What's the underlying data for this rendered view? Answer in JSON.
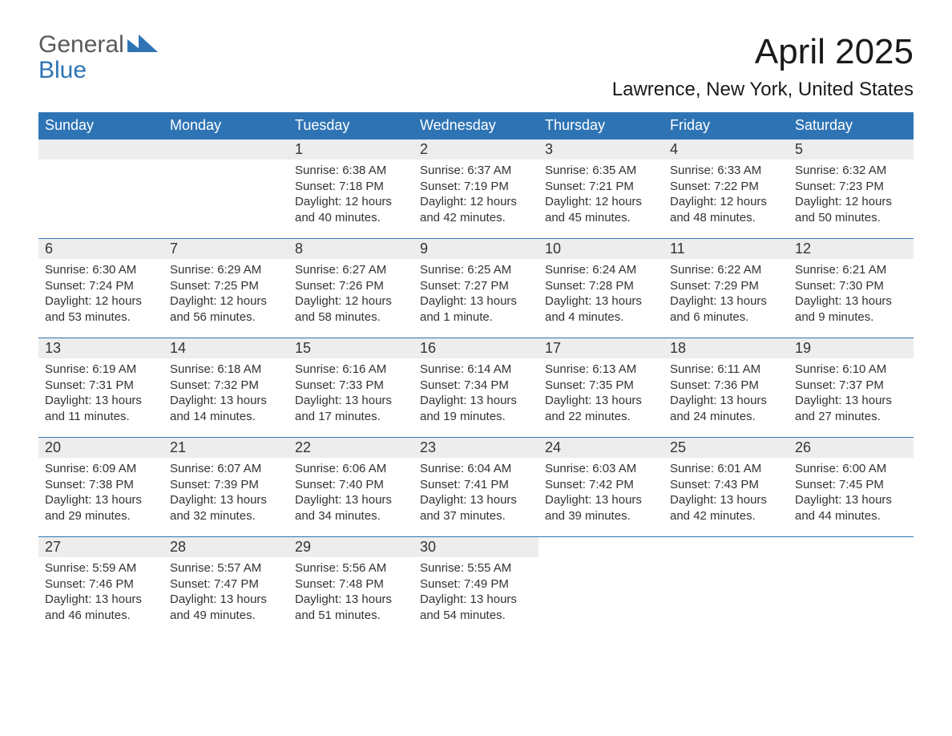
{
  "branding": {
    "logo_line1": "General",
    "logo_line2": "Blue"
  },
  "header": {
    "month_title": "April 2025",
    "location": "Lawrence, New York, United States"
  },
  "style": {
    "header_bg": "#2e74b5",
    "header_text": "#ffffff",
    "daynum_bg": "#ededed",
    "body_text": "#333333",
    "row_border": "#2e74b5",
    "page_bg": "#ffffff",
    "month_title_fontsize": 44,
    "location_fontsize": 24,
    "day_header_fontsize": 18,
    "daynum_fontsize": 18,
    "cell_fontsize": 15
  },
  "day_headers": [
    "Sunday",
    "Monday",
    "Tuesday",
    "Wednesday",
    "Thursday",
    "Friday",
    "Saturday"
  ],
  "weeks": [
    [
      {
        "blank": true
      },
      {
        "blank": true
      },
      {
        "day": "1",
        "sunrise": "Sunrise: 6:38 AM",
        "sunset": "Sunset: 7:18 PM",
        "daylight1": "Daylight: 12 hours",
        "daylight2": "and 40 minutes."
      },
      {
        "day": "2",
        "sunrise": "Sunrise: 6:37 AM",
        "sunset": "Sunset: 7:19 PM",
        "daylight1": "Daylight: 12 hours",
        "daylight2": "and 42 minutes."
      },
      {
        "day": "3",
        "sunrise": "Sunrise: 6:35 AM",
        "sunset": "Sunset: 7:21 PM",
        "daylight1": "Daylight: 12 hours",
        "daylight2": "and 45 minutes."
      },
      {
        "day": "4",
        "sunrise": "Sunrise: 6:33 AM",
        "sunset": "Sunset: 7:22 PM",
        "daylight1": "Daylight: 12 hours",
        "daylight2": "and 48 minutes."
      },
      {
        "day": "5",
        "sunrise": "Sunrise: 6:32 AM",
        "sunset": "Sunset: 7:23 PM",
        "daylight1": "Daylight: 12 hours",
        "daylight2": "and 50 minutes."
      }
    ],
    [
      {
        "day": "6",
        "sunrise": "Sunrise: 6:30 AM",
        "sunset": "Sunset: 7:24 PM",
        "daylight1": "Daylight: 12 hours",
        "daylight2": "and 53 minutes."
      },
      {
        "day": "7",
        "sunrise": "Sunrise: 6:29 AM",
        "sunset": "Sunset: 7:25 PM",
        "daylight1": "Daylight: 12 hours",
        "daylight2": "and 56 minutes."
      },
      {
        "day": "8",
        "sunrise": "Sunrise: 6:27 AM",
        "sunset": "Sunset: 7:26 PM",
        "daylight1": "Daylight: 12 hours",
        "daylight2": "and 58 minutes."
      },
      {
        "day": "9",
        "sunrise": "Sunrise: 6:25 AM",
        "sunset": "Sunset: 7:27 PM",
        "daylight1": "Daylight: 13 hours",
        "daylight2": "and 1 minute."
      },
      {
        "day": "10",
        "sunrise": "Sunrise: 6:24 AM",
        "sunset": "Sunset: 7:28 PM",
        "daylight1": "Daylight: 13 hours",
        "daylight2": "and 4 minutes."
      },
      {
        "day": "11",
        "sunrise": "Sunrise: 6:22 AM",
        "sunset": "Sunset: 7:29 PM",
        "daylight1": "Daylight: 13 hours",
        "daylight2": "and 6 minutes."
      },
      {
        "day": "12",
        "sunrise": "Sunrise: 6:21 AM",
        "sunset": "Sunset: 7:30 PM",
        "daylight1": "Daylight: 13 hours",
        "daylight2": "and 9 minutes."
      }
    ],
    [
      {
        "day": "13",
        "sunrise": "Sunrise: 6:19 AM",
        "sunset": "Sunset: 7:31 PM",
        "daylight1": "Daylight: 13 hours",
        "daylight2": "and 11 minutes."
      },
      {
        "day": "14",
        "sunrise": "Sunrise: 6:18 AM",
        "sunset": "Sunset: 7:32 PM",
        "daylight1": "Daylight: 13 hours",
        "daylight2": "and 14 minutes."
      },
      {
        "day": "15",
        "sunrise": "Sunrise: 6:16 AM",
        "sunset": "Sunset: 7:33 PM",
        "daylight1": "Daylight: 13 hours",
        "daylight2": "and 17 minutes."
      },
      {
        "day": "16",
        "sunrise": "Sunrise: 6:14 AM",
        "sunset": "Sunset: 7:34 PM",
        "daylight1": "Daylight: 13 hours",
        "daylight2": "and 19 minutes."
      },
      {
        "day": "17",
        "sunrise": "Sunrise: 6:13 AM",
        "sunset": "Sunset: 7:35 PM",
        "daylight1": "Daylight: 13 hours",
        "daylight2": "and 22 minutes."
      },
      {
        "day": "18",
        "sunrise": "Sunrise: 6:11 AM",
        "sunset": "Sunset: 7:36 PM",
        "daylight1": "Daylight: 13 hours",
        "daylight2": "and 24 minutes."
      },
      {
        "day": "19",
        "sunrise": "Sunrise: 6:10 AM",
        "sunset": "Sunset: 7:37 PM",
        "daylight1": "Daylight: 13 hours",
        "daylight2": "and 27 minutes."
      }
    ],
    [
      {
        "day": "20",
        "sunrise": "Sunrise: 6:09 AM",
        "sunset": "Sunset: 7:38 PM",
        "daylight1": "Daylight: 13 hours",
        "daylight2": "and 29 minutes."
      },
      {
        "day": "21",
        "sunrise": "Sunrise: 6:07 AM",
        "sunset": "Sunset: 7:39 PM",
        "daylight1": "Daylight: 13 hours",
        "daylight2": "and 32 minutes."
      },
      {
        "day": "22",
        "sunrise": "Sunrise: 6:06 AM",
        "sunset": "Sunset: 7:40 PM",
        "daylight1": "Daylight: 13 hours",
        "daylight2": "and 34 minutes."
      },
      {
        "day": "23",
        "sunrise": "Sunrise: 6:04 AM",
        "sunset": "Sunset: 7:41 PM",
        "daylight1": "Daylight: 13 hours",
        "daylight2": "and 37 minutes."
      },
      {
        "day": "24",
        "sunrise": "Sunrise: 6:03 AM",
        "sunset": "Sunset: 7:42 PM",
        "daylight1": "Daylight: 13 hours",
        "daylight2": "and 39 minutes."
      },
      {
        "day": "25",
        "sunrise": "Sunrise: 6:01 AM",
        "sunset": "Sunset: 7:43 PM",
        "daylight1": "Daylight: 13 hours",
        "daylight2": "and 42 minutes."
      },
      {
        "day": "26",
        "sunrise": "Sunrise: 6:00 AM",
        "sunset": "Sunset: 7:45 PM",
        "daylight1": "Daylight: 13 hours",
        "daylight2": "and 44 minutes."
      }
    ],
    [
      {
        "day": "27",
        "sunrise": "Sunrise: 5:59 AM",
        "sunset": "Sunset: 7:46 PM",
        "daylight1": "Daylight: 13 hours",
        "daylight2": "and 46 minutes."
      },
      {
        "day": "28",
        "sunrise": "Sunrise: 5:57 AM",
        "sunset": "Sunset: 7:47 PM",
        "daylight1": "Daylight: 13 hours",
        "daylight2": "and 49 minutes."
      },
      {
        "day": "29",
        "sunrise": "Sunrise: 5:56 AM",
        "sunset": "Sunset: 7:48 PM",
        "daylight1": "Daylight: 13 hours",
        "daylight2": "and 51 minutes."
      },
      {
        "day": "30",
        "sunrise": "Sunrise: 5:55 AM",
        "sunset": "Sunset: 7:49 PM",
        "daylight1": "Daylight: 13 hours",
        "daylight2": "and 54 minutes."
      },
      {
        "blank": true
      },
      {
        "blank": true
      },
      {
        "blank": true
      }
    ]
  ]
}
